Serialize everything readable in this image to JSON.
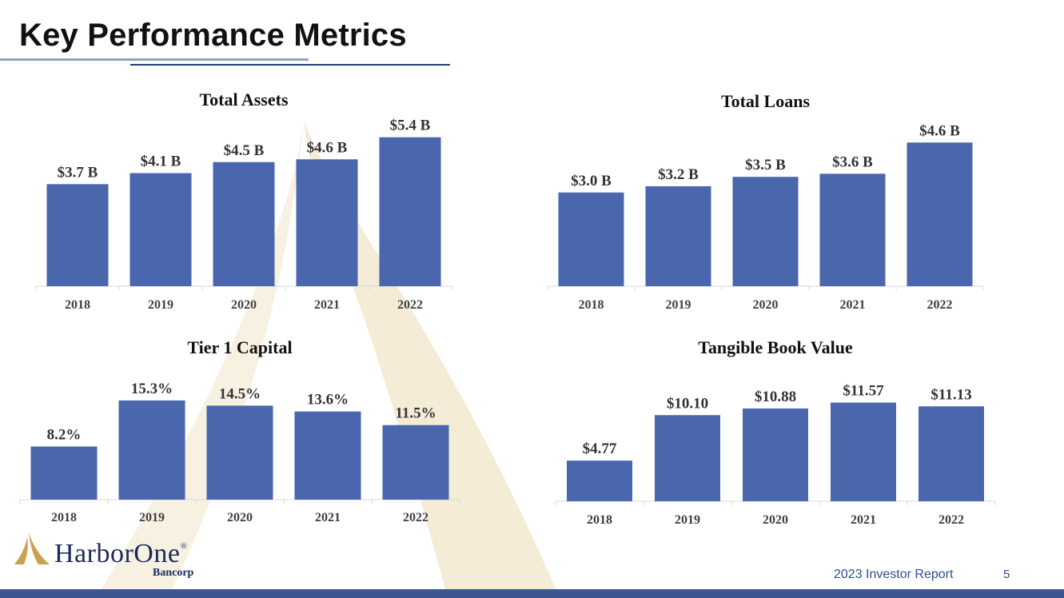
{
  "page": {
    "title": "Key Performance Metrics",
    "footer_report": "2023 Investor Report",
    "page_number": "5"
  },
  "logo": {
    "name": "HarborOne",
    "registered_mark": "®",
    "sub": "Bancorp"
  },
  "colors": {
    "bar": "#4a66ad",
    "title_rule_light": "#8fa3c2",
    "title_rule_dark": "#1f3f73",
    "footer_bar": "#3b5691",
    "watermark": "#f4ecd6",
    "logo_gold": "#c9a24b",
    "logo_navy": "#1b2a5e"
  },
  "chart_data": [
    {
      "type": "bar",
      "title": "Total Assets",
      "categories": [
        "2018",
        "2019",
        "2020",
        "2021",
        "2022"
      ],
      "values": [
        3.7,
        4.1,
        4.5,
        4.6,
        5.4
      ],
      "labels": [
        "$3.7 B",
        "$4.1 B",
        "$4.5 B",
        "$4.6 B",
        "$5.4 B"
      ],
      "ylim": [
        0,
        6.0
      ],
      "grid": false,
      "legend": "none"
    },
    {
      "type": "bar",
      "title": "Total Loans",
      "categories": [
        "2018",
        "2019",
        "2020",
        "2021",
        "2022"
      ],
      "values": [
        3.0,
        3.2,
        3.5,
        3.6,
        4.6
      ],
      "labels": [
        "$3.0 B",
        "$3.2 B",
        "$3.5 B",
        "$3.6 B",
        "$4.6 B"
      ],
      "ylim": [
        0,
        5.4
      ],
      "grid": false,
      "legend": "none"
    },
    {
      "type": "bar",
      "title": "Tier 1 Capital",
      "categories": [
        "2018",
        "2019",
        "2020",
        "2021",
        "2022"
      ],
      "values": [
        8.2,
        15.3,
        14.5,
        13.6,
        11.5
      ],
      "labels": [
        "8.2%",
        "15.3%",
        "14.5%",
        "13.6%",
        "11.5%"
      ],
      "ylim": [
        0,
        18.0
      ],
      "grid": false,
      "legend": "none"
    },
    {
      "type": "bar",
      "title": "Tangible Book Value",
      "categories": [
        "2018",
        "2019",
        "2020",
        "2021",
        "2022"
      ],
      "values": [
        4.77,
        10.1,
        10.88,
        11.57,
        11.13
      ],
      "labels": [
        "$4.77",
        "$10.10",
        "$10.88",
        "$11.57",
        "$11.13"
      ],
      "ylim": [
        0,
        13.5
      ],
      "grid": false,
      "legend": "none"
    }
  ]
}
